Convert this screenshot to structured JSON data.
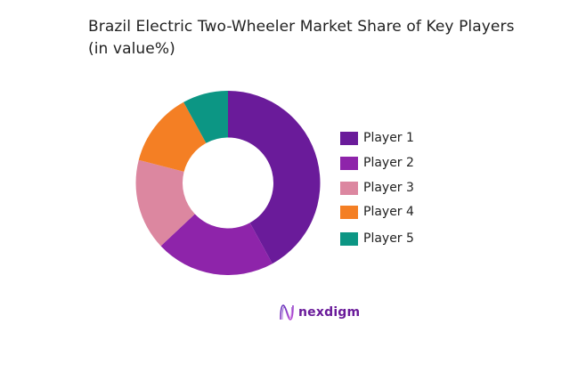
{
  "title_line1": "Brazil Electric Two-Wheeler Market Share of Key Players",
  "title_line2": "(in value%)",
  "chart_data": {
    "type": "pie",
    "subtype": "donut",
    "title": "Brazil Electric Two-Wheeler Market Share of Key Players (in value%)",
    "categories": [
      "Player 1",
      "Player 2",
      "Player 3",
      "Player 4",
      "Player 5"
    ],
    "values": [
      42,
      21,
      16,
      13,
      8
    ],
    "colors": [
      "#6A1B9A",
      "#8E24AA",
      "#DC87A0",
      "#F47F24",
      "#0C9684"
    ],
    "start_angle": "12 o'clock, clockwise",
    "legend_position": "right",
    "data_labels": false
  },
  "legend": [
    {
      "label": "Player 1",
      "color": "#6A1B9A"
    },
    {
      "label": "Player 2",
      "color": "#8E24AA"
    },
    {
      "label": "Player 3",
      "color": "#DC87A0"
    },
    {
      "label": "Player 4",
      "color": "#F47F24"
    },
    {
      "label": "Player 5",
      "color": "#0C9684"
    }
  ],
  "logo": {
    "text": "nexdigm"
  }
}
